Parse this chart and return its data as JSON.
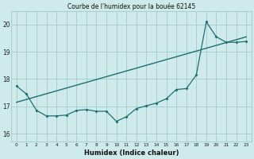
{
  "title": "Courbe de l'humidex pour la bouée 62145",
  "xlabel": "Humidex (Indice chaleur)",
  "background_color": "#ceeaea",
  "grid_color": "#aacfcf",
  "line_color": "#1e7070",
  "xlim": [
    -0.5,
    23.5
  ],
  "ylim": [
    15.7,
    20.5
  ],
  "yticks": [
    16,
    17,
    18,
    19
  ],
  "ytick_extra": 20,
  "xticks": [
    0,
    1,
    2,
    3,
    4,
    5,
    6,
    7,
    8,
    9,
    10,
    11,
    12,
    13,
    14,
    15,
    16,
    17,
    18,
    19,
    20,
    21,
    22,
    23
  ],
  "line1_x": [
    0,
    1,
    2,
    3,
    4,
    5,
    6,
    7,
    8,
    9,
    10,
    11,
    12,
    13,
    14,
    15,
    16,
    17,
    18,
    19,
    20,
    21,
    22,
    23
  ],
  "line1_y": [
    17.75,
    17.45,
    16.85,
    16.65,
    16.65,
    16.68,
    16.85,
    16.88,
    16.82,
    16.82,
    16.45,
    16.62,
    16.92,
    17.02,
    17.12,
    17.28,
    17.62,
    17.65,
    18.15,
    20.1,
    19.55,
    19.35,
    19.35,
    19.38
  ],
  "line2_x": [
    0,
    23
  ],
  "line2_y": [
    17.15,
    19.55
  ]
}
